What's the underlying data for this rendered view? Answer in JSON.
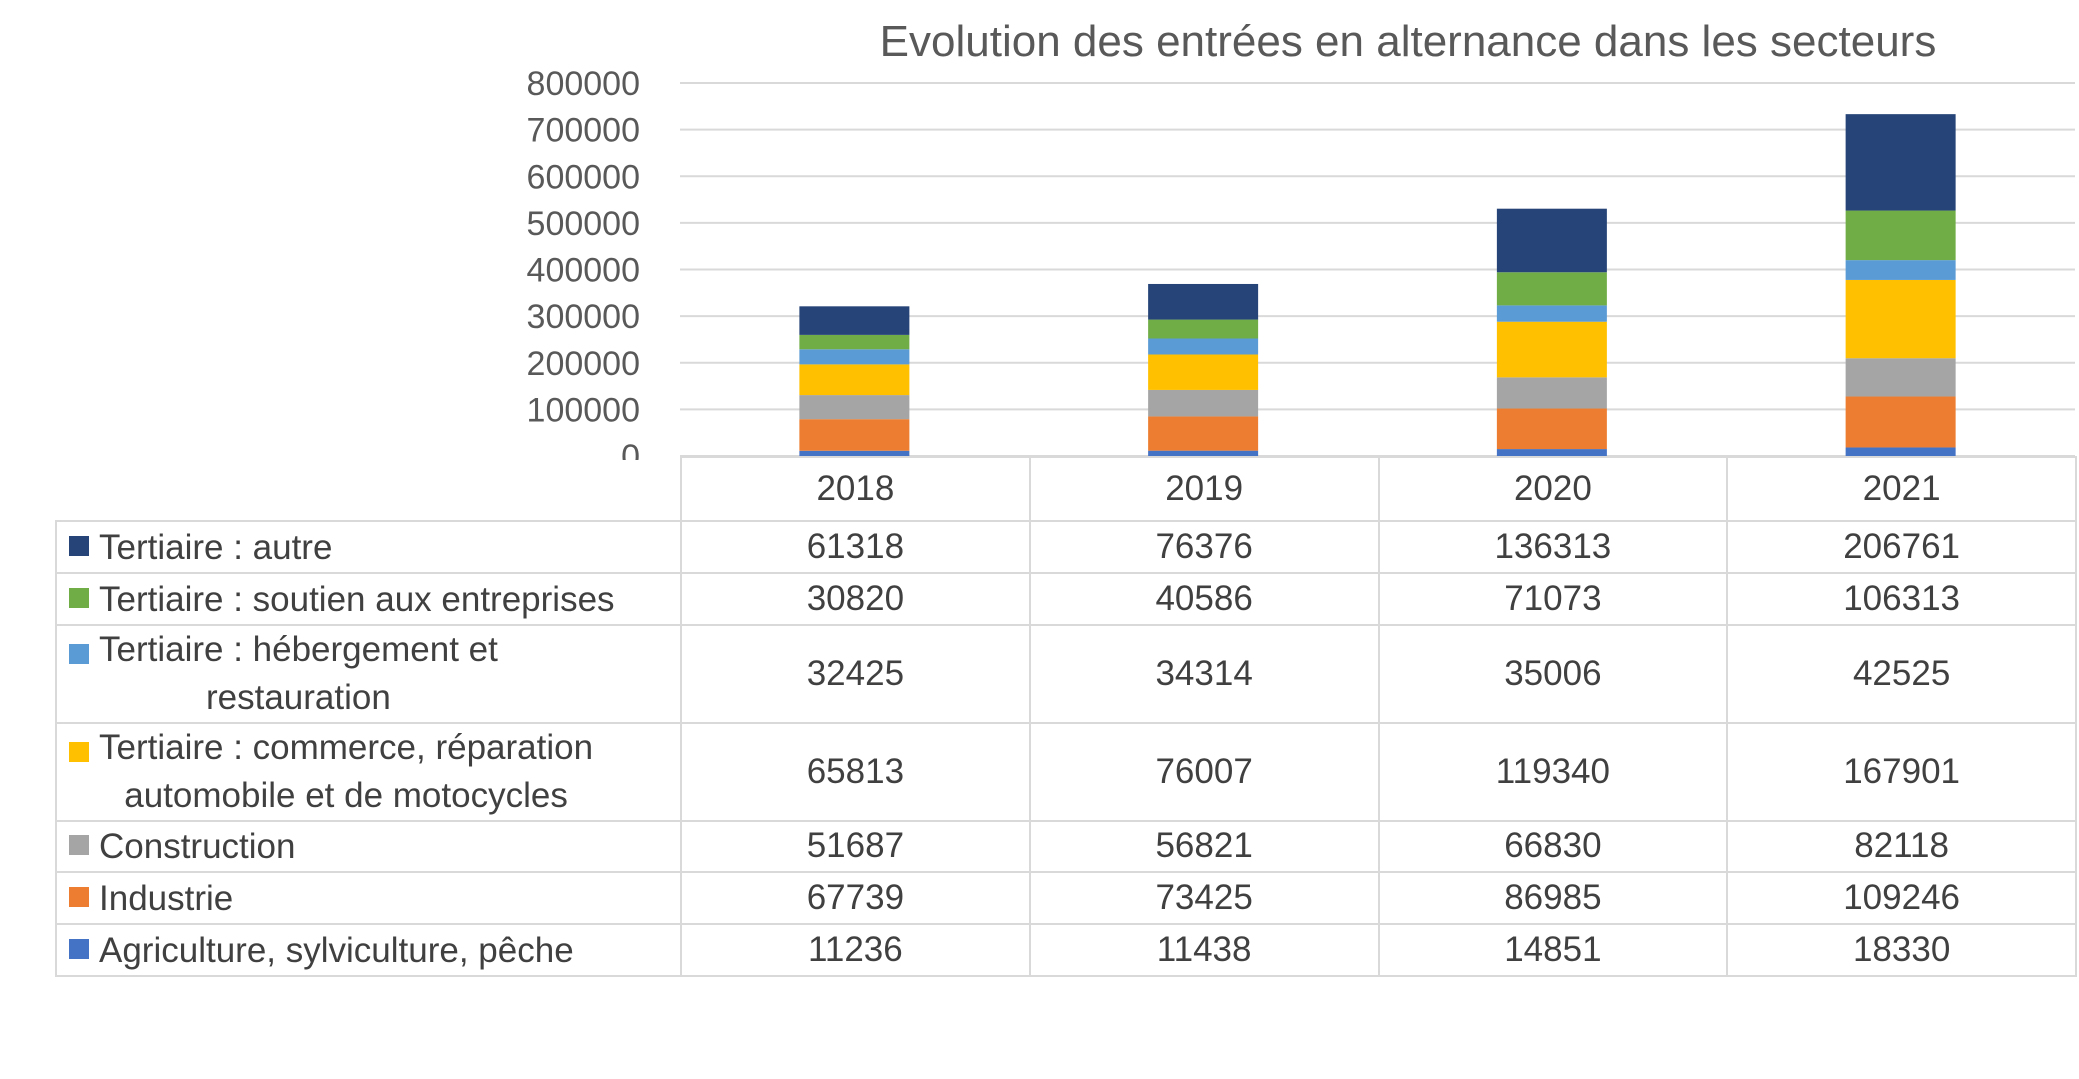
{
  "chart_data": {
    "type": "bar",
    "stacked": true,
    "title": "Evolution des entrées en alternance dans les secteurs",
    "categories": [
      "2018",
      "2019",
      "2020",
      "2021"
    ],
    "ylim": [
      0,
      800000
    ],
    "yticks": [
      "800000",
      "700000",
      "600000",
      "500000",
      "400000",
      "300000",
      "200000",
      "100000",
      "0"
    ],
    "grid": true,
    "legend_placement": "data-table",
    "series": [
      {
        "name": "Agriculture, sylviculture, pêche",
        "color": "#4472c4",
        "values": [
          11236,
          11438,
          14851,
          18330
        ]
      },
      {
        "name": "Industrie",
        "color": "#ed7d31",
        "values": [
          67739,
          73425,
          86985,
          109246
        ]
      },
      {
        "name": "Construction",
        "color": "#a5a5a5",
        "values": [
          51687,
          56821,
          66830,
          82118
        ]
      },
      {
        "name": "Tertiaire : commerce, réparation automobile et de motocycles",
        "color": "#ffc000",
        "values": [
          65813,
          76007,
          119340,
          167901
        ]
      },
      {
        "name": "Tertiaire : hébergement et restauration",
        "color": "#5b9bd5",
        "values": [
          32425,
          34314,
          35006,
          42525
        ]
      },
      {
        "name": "Tertiaire : soutien aux entreprises",
        "color": "#70ad47",
        "values": [
          30820,
          40586,
          71073,
          106313
        ]
      },
      {
        "name": "Tertiaire : autre",
        "color": "#264478",
        "values": [
          61318,
          76376,
          136313,
          206761
        ]
      }
    ]
  },
  "table": {
    "rows": [
      {
        "label_lines": [
          "Tertiaire : autre"
        ],
        "color": "#264478",
        "values": [
          "61318",
          "76376",
          "136313",
          "206761"
        ]
      },
      {
        "label_lines": [
          "Tertiaire : soutien aux entreprises"
        ],
        "color": "#70ad47",
        "values": [
          "30820",
          "40586",
          "71073",
          "106313"
        ]
      },
      {
        "label_lines": [
          "Tertiaire : hébergement et",
          "restauration"
        ],
        "color": "#5b9bd5",
        "values": [
          "32425",
          "34314",
          "35006",
          "42525"
        ]
      },
      {
        "label_lines": [
          "Tertiaire : commerce, réparation",
          "automobile et de motocycles"
        ],
        "color": "#ffc000",
        "values": [
          "65813",
          "76007",
          "119340",
          "167901"
        ]
      },
      {
        "label_lines": [
          "Construction"
        ],
        "color": "#a5a5a5",
        "values": [
          "51687",
          "56821",
          "66830",
          "82118"
        ]
      },
      {
        "label_lines": [
          "Industrie"
        ],
        "color": "#ed7d31",
        "values": [
          "67739",
          "73425",
          "86985",
          "109246"
        ]
      },
      {
        "label_lines": [
          "Agriculture, sylviculture, pêche"
        ],
        "color": "#4472c4",
        "values": [
          "11236",
          "11438",
          "14851",
          "18330"
        ]
      }
    ]
  }
}
